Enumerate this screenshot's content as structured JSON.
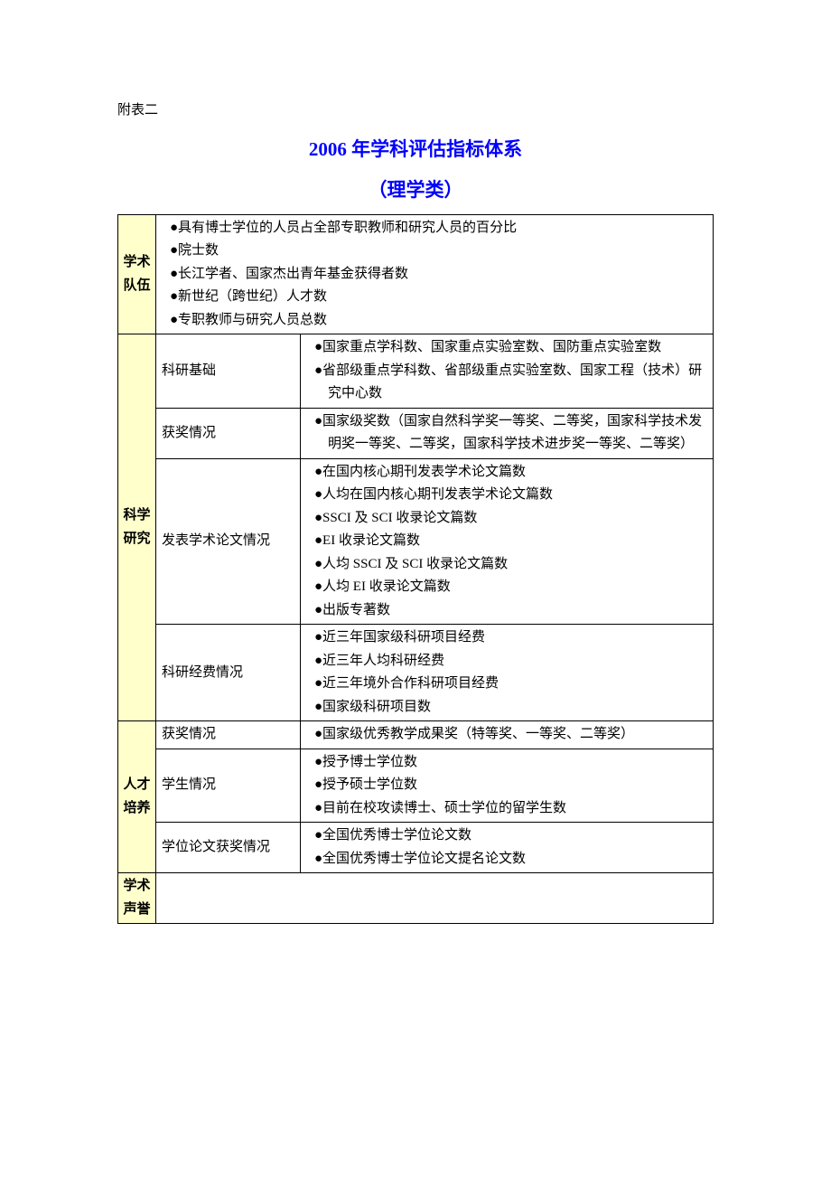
{
  "header": {
    "attachment_label": "附表二",
    "title": "2006 年学科评估指标体系",
    "subtitle": "（理学类）"
  },
  "colors": {
    "title_color": "#0000ff",
    "category_bg": "#ffffcc",
    "border_color": "#000000",
    "text_color": "#000000",
    "background": "#ffffff"
  },
  "table": {
    "categories": [
      {
        "name": "学术队伍",
        "full_span_items": [
          "●具有博士学位的人员占全部专职教师和研究人员的百分比",
          "●院士数",
          "●长江学者、国家杰出青年基金获得者数",
          "●新世纪（跨世纪）人才数",
          "●专职教师与研究人员总数"
        ]
      },
      {
        "name": "科学研究",
        "subsections": [
          {
            "label": "科研基础",
            "items": [
              "●国家重点学科数、国家重点实验室数、国防重点实验室数",
              "●省部级重点学科数、省部级重点实验室数、国家工程（技术）研究中心数"
            ]
          },
          {
            "label": "获奖情况",
            "items": [
              "●国家级奖数（国家自然科学奖一等奖、二等奖，国家科学技术发明奖一等奖、二等奖，国家科学技术进步奖一等奖、二等奖）"
            ]
          },
          {
            "label": "发表学术论文情况",
            "items": [
              "●在国内核心期刊发表学术论文篇数",
              "●人均在国内核心期刊发表学术论文篇数",
              "●SSCI 及 SCI 收录论文篇数",
              "●EI 收录论文篇数",
              "●人均 SSCI 及 SCI 收录论文篇数",
              "●人均 EI 收录论文篇数",
              "●出版专著数"
            ]
          },
          {
            "label": "科研经费情况",
            "items": [
              "●近三年国家级科研项目经费",
              "●近三年人均科研经费",
              "●近三年境外合作科研项目经费",
              "●国家级科研项目数"
            ]
          }
        ]
      },
      {
        "name": "人才培养",
        "subsections": [
          {
            "label": "获奖情况",
            "items": [
              "●国家级优秀教学成果奖（特等奖、一等奖、二等奖）"
            ]
          },
          {
            "label": "学生情况",
            "items": [
              "●授予博士学位数",
              "●授予硕士学位数",
              "●目前在校攻读博士、硕士学位的留学生数"
            ]
          },
          {
            "label": "学位论文获奖情况",
            "items": [
              "●全国优秀博士学位论文数",
              "●全国优秀博士学位论文提名论文数"
            ]
          }
        ]
      },
      {
        "name": "学术声誉",
        "empty": true
      }
    ]
  }
}
